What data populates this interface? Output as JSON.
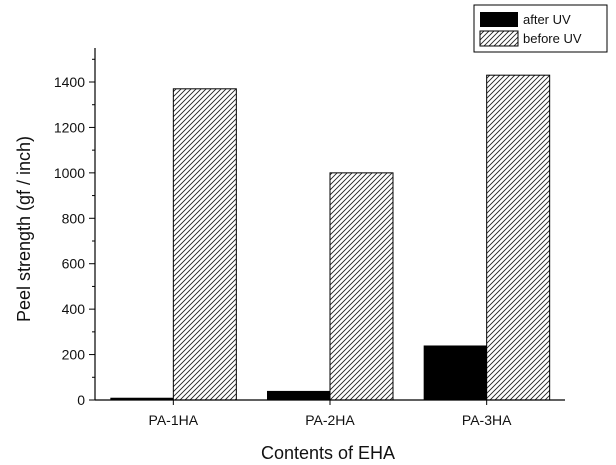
{
  "chart_data": {
    "type": "bar",
    "categories": [
      "PA-1HA",
      "PA-2HA",
      "PA-3HA"
    ],
    "series": [
      {
        "name": "after UV",
        "values": [
          10,
          40,
          240
        ],
        "pattern": "solid",
        "color": "#000000"
      },
      {
        "name": "before UV",
        "values": [
          1370,
          1000,
          1430
        ],
        "pattern": "diagonal-hatch",
        "color": "#000000"
      }
    ],
    "title": "",
    "xlabel": "Contents of EHA",
    "ylabel": "Peel strength (gf / inch)",
    "ylim": [
      0,
      1500
    ],
    "yticks": [
      0,
      200,
      400,
      600,
      800,
      1000,
      1200,
      1400
    ],
    "grid": false,
    "legend_position": "top-right"
  }
}
